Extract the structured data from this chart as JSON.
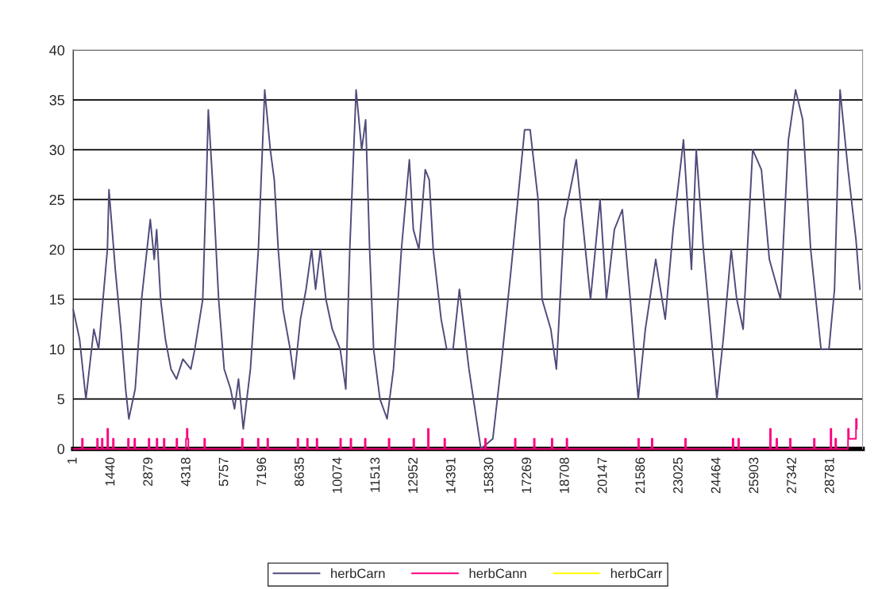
{
  "chart_data": {
    "type": "line",
    "xlim": [
      1,
      30000
    ],
    "xticks": [
      1,
      1440,
      2879,
      4318,
      5757,
      7196,
      8635,
      10074,
      11513,
      12952,
      14391,
      15830,
      17269,
      18708,
      20147,
      21586,
      23025,
      24464,
      25903,
      27342,
      28781
    ],
    "ylim": [
      0,
      40
    ],
    "yticks": [
      0,
      5,
      10,
      15,
      20,
      25,
      30,
      35,
      40
    ],
    "grid": "y",
    "legend": "bottom",
    "series": [
      {
        "name": "herbCarn",
        "color": "#4f4c7a",
        "x": [
          1,
          243,
          484,
          786,
          967,
          1300,
          1360,
          1600,
          1813,
          1994,
          2115,
          2357,
          2598,
          2930,
          3081,
          3172,
          3323,
          3504,
          3716,
          3927,
          4169,
          4471,
          4622,
          4924,
          5075,
          5135,
          5316,
          5528,
          5739,
          5981,
          6132,
          6283,
          6464,
          6736,
          7038,
          7189,
          7279,
          7491,
          7642,
          7793,
          7974,
          8246,
          8397,
          8638,
          8850,
          9061,
          9212,
          9393,
          9605,
          9846,
          10148,
          10360,
          10511,
          10752,
          10964,
          11115,
          11266,
          11417,
          11658,
          11930,
          12172,
          12474,
          12776,
          12927,
          13138,
          13380,
          13531,
          13682,
          13984,
          14195,
          14437,
          14678,
          15041,
          15494,
          15947,
          16249,
          16641,
          17155,
          17366,
          17668,
          17819,
          18151,
          18363,
          18665,
          19118,
          19661,
          20024,
          20265,
          20567,
          20869,
          21171,
          21473,
          21745,
          22138,
          22500,
          22802,
          23194,
          23496,
          23678,
          23950,
          24463,
          24705,
          25007,
          25218,
          25460,
          25823,
          26155,
          26457,
          26880,
          27181,
          27453,
          27725,
          28027,
          28420,
          28722,
          28933,
          29144,
          29446,
          29748,
          29899
        ],
        "values": [
          14,
          11,
          5,
          12,
          10,
          20,
          26,
          18,
          12,
          6,
          3,
          6,
          15,
          23,
          19,
          22,
          15,
          11,
          8,
          7,
          9,
          8,
          10,
          15,
          28,
          34,
          26,
          15,
          8,
          6,
          4,
          7,
          2,
          8,
          20,
          30,
          36,
          30,
          27,
          20,
          14,
          10,
          7,
          13,
          16,
          20,
          16,
          20,
          15,
          12,
          10,
          6,
          20,
          36,
          30,
          33,
          20,
          10,
          5,
          3,
          8,
          20,
          29,
          22,
          20,
          28,
          27,
          20,
          13,
          10,
          10,
          16,
          8,
          0,
          1,
          8,
          18,
          32,
          32,
          25,
          15,
          12,
          8,
          23,
          29,
          15,
          25,
          15,
          22,
          24,
          15,
          5,
          12,
          19,
          13,
          22,
          31,
          18,
          30,
          20,
          5,
          11,
          20,
          15,
          12,
          30,
          28,
          19,
          15,
          31,
          36,
          33,
          20,
          10,
          10,
          16,
          36,
          28,
          21,
          16
        ]
      },
      {
        "name": "herbCann",
        "color": "#ff0080",
        "type": "step",
        "x": [
          1,
          334,
          364,
          907,
          937,
          1088,
          1118,
          1299,
          1329,
          1511,
          1541,
          2083,
          2113,
          2324,
          2354,
          2868,
          2898,
          3170,
          3200,
          3442,
          3472,
          3925,
          3955,
          4287,
          4317,
          4347,
          4377,
          4982,
          5012,
          6414,
          6444,
          7018,
          7048,
          7380,
          7410,
          8526,
          8556,
          8888,
          8918,
          9251,
          9281,
          10148,
          10178,
          10539,
          10569,
          11084,
          11114,
          11990,
          12020,
          12929,
          12959,
          13482,
          13512,
          14106,
          14136,
          15653,
          15683,
          16785,
          16815,
          17510,
          17540,
          18185,
          18215,
          18749,
          18779,
          21473,
          21503,
          21986,
          22016,
          23255,
          23285,
          25062,
          25092,
          25273,
          25303,
          26482,
          26512,
          26723,
          26753,
          27238,
          27268,
          28149,
          28179,
          28783,
          28813,
          28964,
          28994,
          29447,
          29477,
          29749,
          29779
        ],
        "values": [
          0,
          1,
          0,
          1,
          0,
          1,
          0,
          2,
          0,
          1,
          0,
          1,
          0,
          1,
          0,
          1,
          0,
          1,
          0,
          1,
          0,
          1,
          0,
          1,
          2,
          1,
          0,
          1,
          0,
          1,
          0,
          1,
          0,
          1,
          0,
          1,
          0,
          1,
          0,
          1,
          0,
          1,
          0,
          1,
          0,
          1,
          0,
          1,
          0,
          1,
          0,
          2,
          0,
          1,
          0,
          1,
          0,
          1,
          0,
          1,
          0,
          1,
          0,
          1,
          0,
          1,
          0,
          1,
          0,
          1,
          0,
          1,
          0,
          1,
          0,
          2,
          0,
          1,
          0,
          1,
          0,
          1,
          0,
          2,
          0,
          1,
          0,
          2,
          1,
          3,
          2
        ]
      },
      {
        "name": "herbCarr",
        "color": "#ffff00"
      }
    ]
  }
}
